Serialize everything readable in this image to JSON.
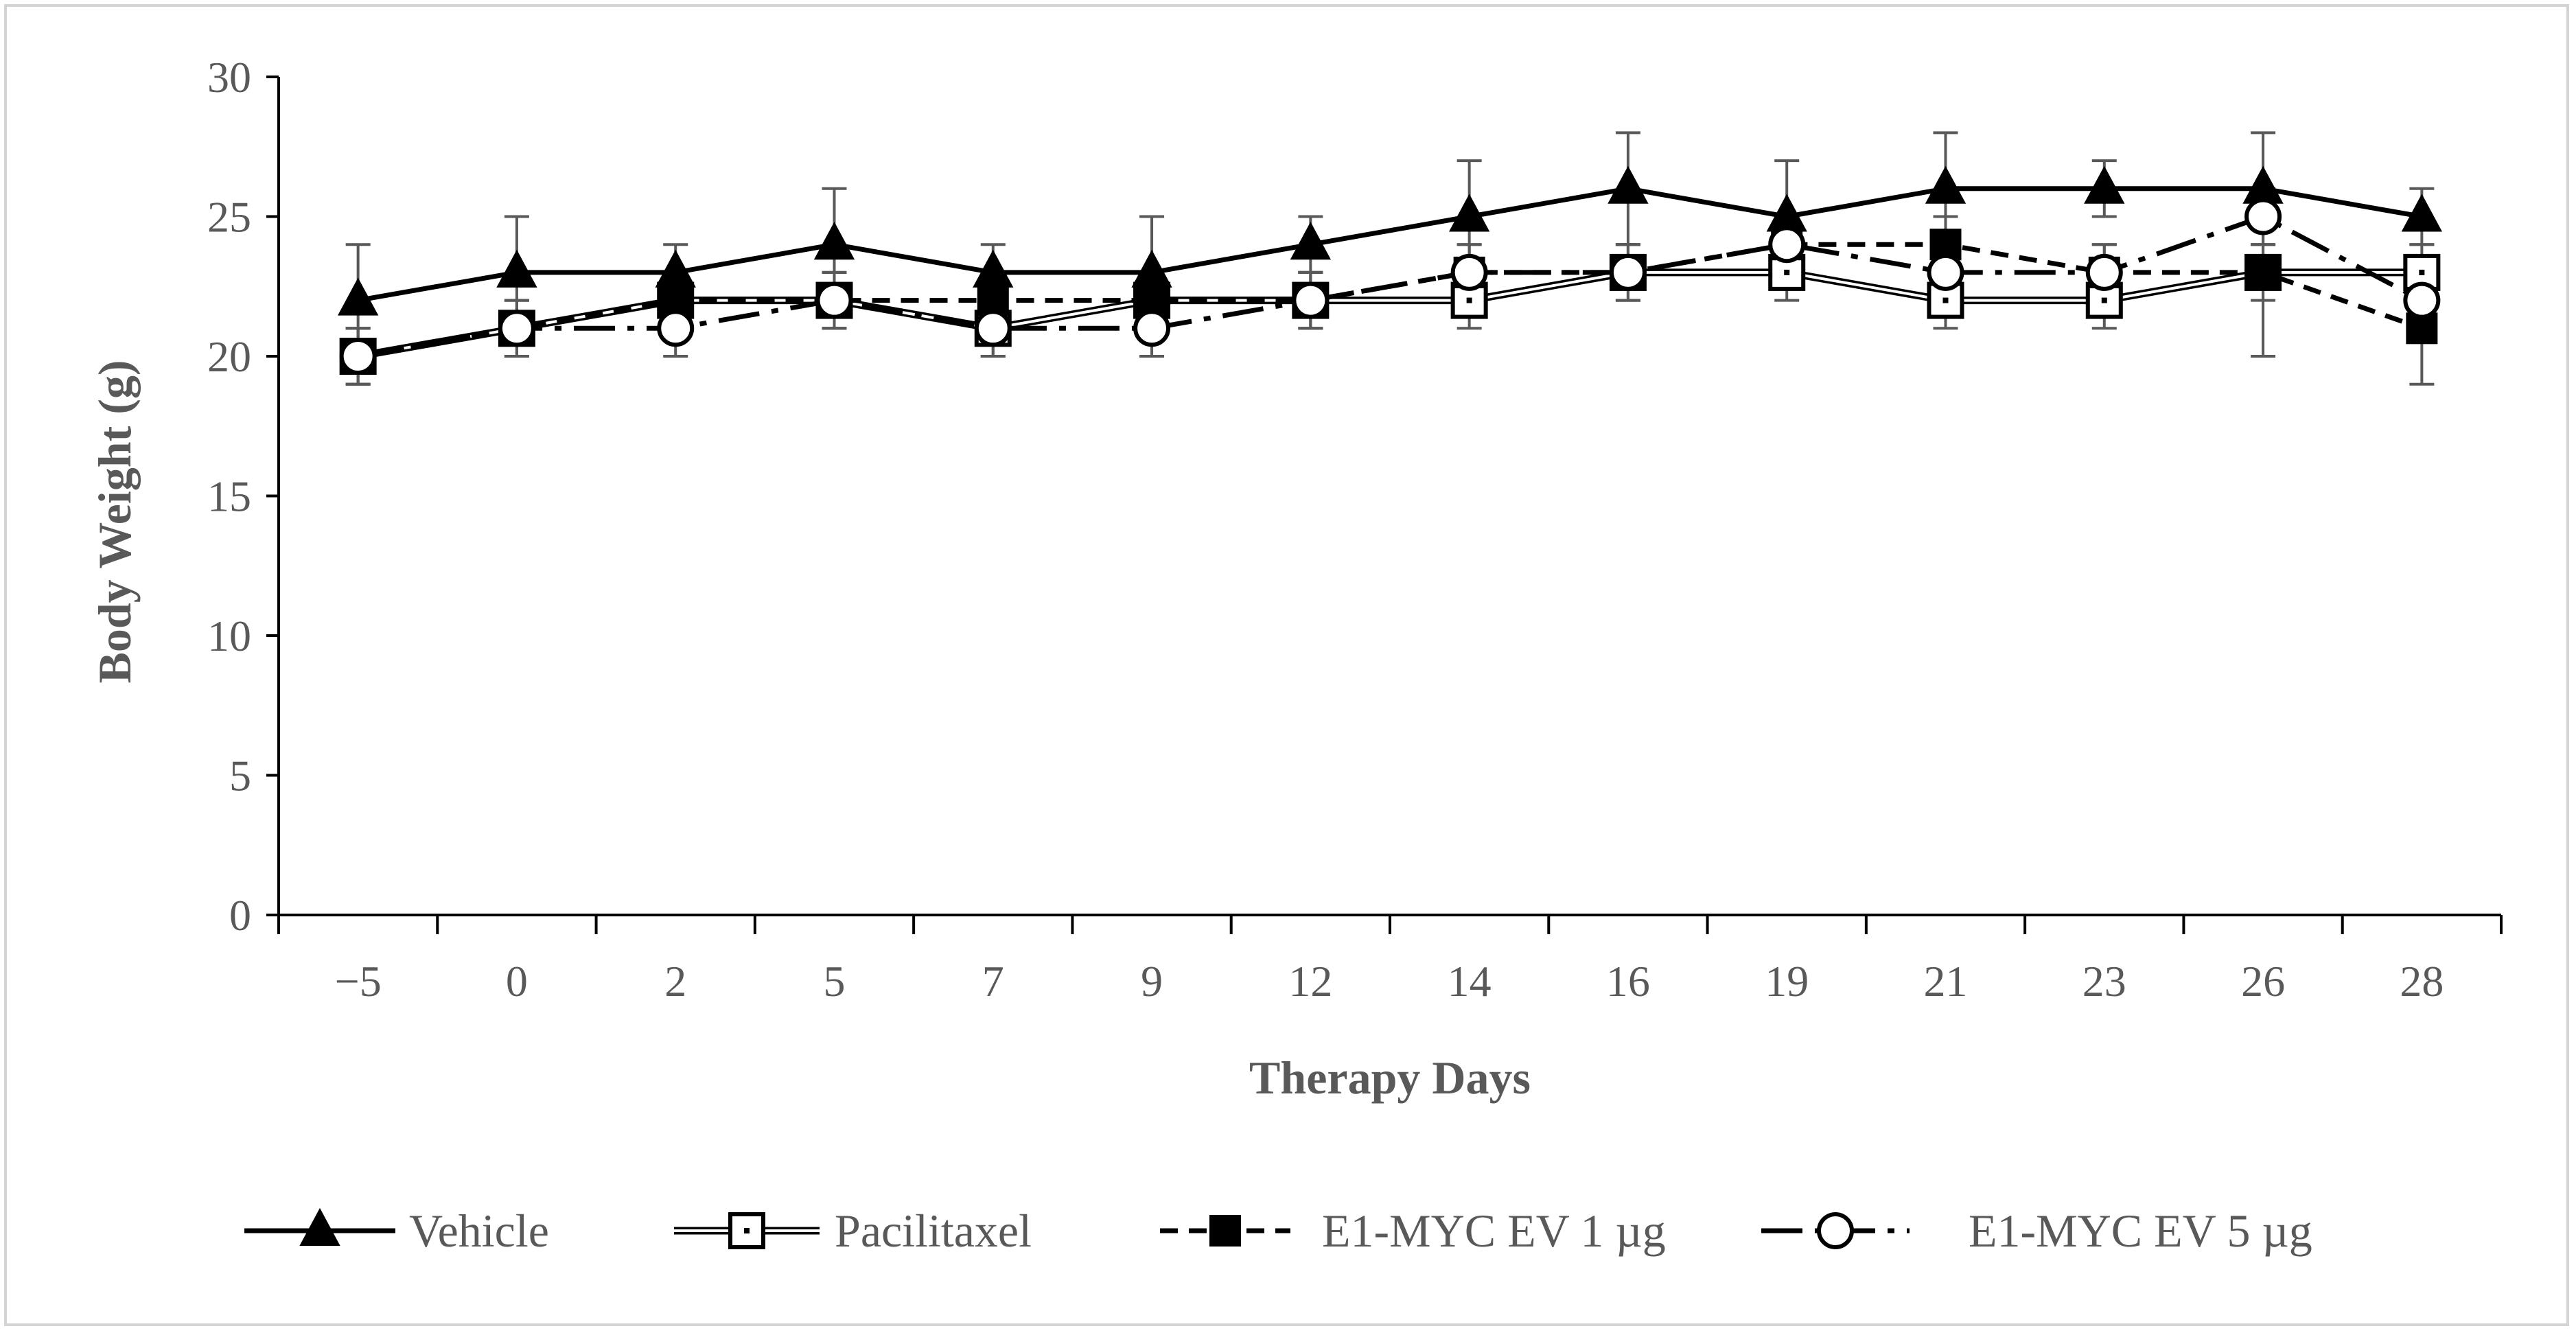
{
  "chart_data": {
    "type": "line",
    "xlabel": "Therapy Days",
    "ylabel": "Body Weight (g)",
    "categories": [
      "−5",
      "0",
      "2",
      "5",
      "7",
      "9",
      "12",
      "14",
      "16",
      "19",
      "21",
      "23",
      "26",
      "28"
    ],
    "ylim": [
      0,
      30
    ],
    "yticks": [
      "0",
      "5",
      "10",
      "15",
      "20",
      "25",
      "30"
    ],
    "grid": false,
    "legend_position": "bottom",
    "series": [
      {
        "name": "Vehicle",
        "marker": "filled-triangle",
        "line": "solid",
        "color": "#000000",
        "values": [
          22,
          23,
          23,
          24,
          23,
          23,
          24,
          25,
          26,
          25,
          26,
          26,
          26,
          25
        ],
        "errors": [
          2,
          2,
          1,
          2,
          1,
          2,
          1,
          2,
          2,
          2,
          2,
          1,
          2,
          1
        ]
      },
      {
        "name": "Pacilitaxel",
        "marker": "open-square-dot",
        "line": "double",
        "color": "#000000",
        "values": [
          20,
          21,
          22,
          22,
          21,
          22,
          22,
          22,
          23,
          23,
          22,
          22,
          23,
          23
        ],
        "errors": [
          1,
          1,
          1,
          1,
          1,
          1,
          1,
          1,
          1,
          1,
          1,
          1,
          1,
          1
        ]
      },
      {
        "name": "E1-MYC EV 1 µg",
        "marker": "filled-square",
        "line": "dashed",
        "color": "#000000",
        "values": [
          20,
          21,
          22,
          22,
          22,
          22,
          22,
          23,
          23,
          24,
          24,
          23,
          23,
          21
        ],
        "errors": [
          1,
          1,
          1,
          1,
          1,
          1,
          1,
          1,
          1,
          1,
          1,
          1,
          3,
          2
        ]
      },
      {
        "name": "E1-MYC EV 5 µg",
        "marker": "open-circle",
        "line": "long-dash",
        "color": "#000000",
        "values": [
          20,
          21,
          21,
          22,
          21,
          21,
          22,
          23,
          23,
          24,
          23,
          23,
          25,
          22
        ],
        "errors": [
          1,
          1,
          1,
          1,
          1,
          1,
          1,
          1,
          1,
          1,
          1,
          1,
          1,
          1
        ]
      }
    ]
  }
}
